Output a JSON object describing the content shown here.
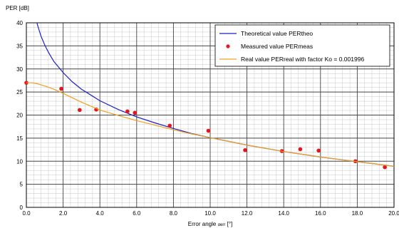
{
  "chart_data": {
    "type": "line",
    "title": "",
    "ylabel": "PER [dB]",
    "xlabel_main": "Error angle",
    "xlabel_sub": "αerr",
    "xlabel_unit": " [°]",
    "xlim": [
      0,
      20
    ],
    "ylim": [
      0,
      40
    ],
    "grid": true,
    "legend_position": "top-right",
    "x_ticks": [
      "0.0",
      "2.0",
      "4.0",
      "6.0",
      "8.0",
      "10.0",
      "12.0",
      "14.0",
      "16.0",
      "18.0",
      "20.0"
    ],
    "y_ticks": [
      "0",
      "5",
      "10",
      "15",
      "20",
      "25",
      "30",
      "35",
      "40"
    ],
    "series": [
      {
        "name": "Theoretical value PERtheo",
        "kind": "line",
        "color": "#1f1fc8",
        "x": [
          0.5,
          0.6,
          0.7,
          0.8,
          1.0,
          1.2,
          1.5,
          2.0,
          2.5,
          3.0,
          4.0,
          5.0,
          6.0,
          7.0,
          8.0,
          9.0,
          10.0,
          11.0,
          12.0,
          13.0,
          14.0,
          15.0,
          16.0,
          17.0,
          18.0,
          19.0,
          20.0
        ],
        "y": [
          41.2,
          39.6,
          38.3,
          37.1,
          35.2,
          33.6,
          31.6,
          29.2,
          27.2,
          25.6,
          23.1,
          21.2,
          19.6,
          18.3,
          17.1,
          16.0,
          15.1,
          14.3,
          13.5,
          12.8,
          12.1,
          11.5,
          10.9,
          10.4,
          9.9,
          9.4,
          8.9
        ]
      },
      {
        "name": "Measured value PERmeas",
        "kind": "scatter",
        "color": "#e8141c",
        "x": [
          0.0,
          1.9,
          2.9,
          3.8,
          5.5,
          5.9,
          7.8,
          9.9,
          11.9,
          13.9,
          14.9,
          15.9,
          17.9,
          19.5
        ],
        "y": [
          27.0,
          25.7,
          21.1,
          21.2,
          20.8,
          20.5,
          17.7,
          16.6,
          12.4,
          12.2,
          12.6,
          12.3,
          10.0,
          8.7
        ]
      },
      {
        "name": "Real value PERreal with factor Ko = 0.001996",
        "kind": "line",
        "color": "#f0a020",
        "x": [
          0.0,
          0.3,
          0.6,
          1.0,
          1.5,
          2.0,
          3.0,
          4.0,
          5.0,
          6.0,
          7.0,
          8.0,
          9.0,
          10.0,
          11.0,
          12.0,
          13.0,
          14.0,
          15.0,
          16.0,
          17.0,
          18.0,
          19.0,
          20.0
        ],
        "y": [
          27.0,
          27.0,
          26.8,
          26.3,
          25.6,
          24.7,
          22.8,
          21.1,
          19.9,
          18.8,
          17.8,
          16.8,
          15.9,
          15.1,
          14.3,
          13.5,
          12.8,
          12.1,
          11.5,
          10.9,
          10.4,
          9.9,
          9.4,
          8.9
        ]
      }
    ]
  }
}
